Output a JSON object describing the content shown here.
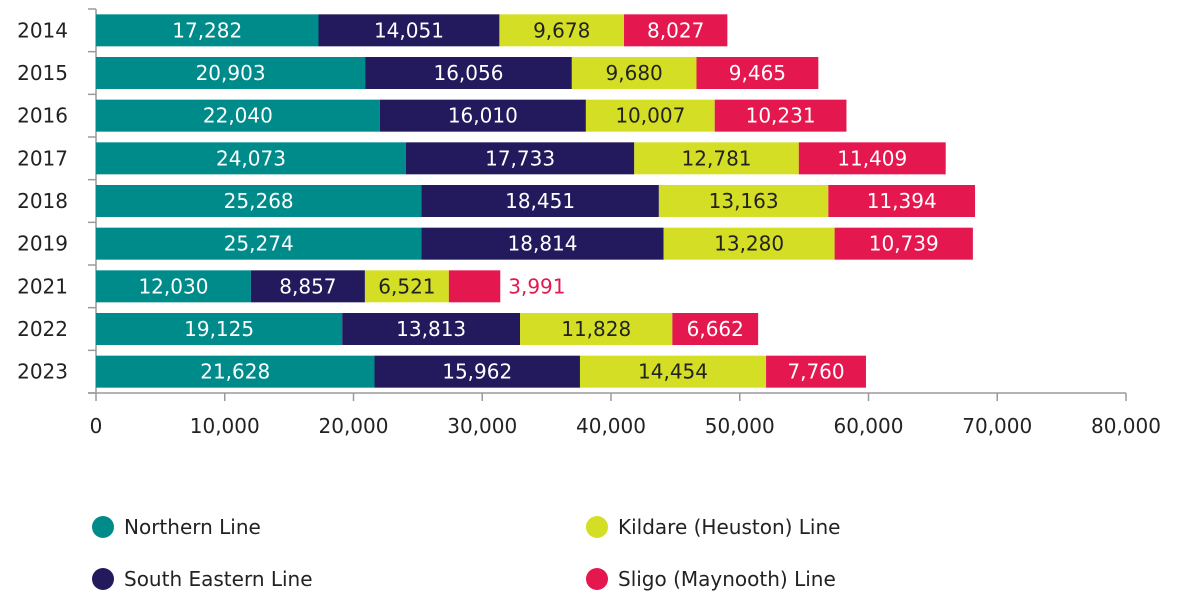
{
  "chart_data": {
    "type": "bar",
    "orientation": "horizontal",
    "stacked": true,
    "categories": [
      "2014",
      "2015",
      "2016",
      "2017",
      "2018",
      "2019",
      "2021",
      "2022",
      "2023"
    ],
    "series": [
      {
        "name": "Northern Line",
        "color": "#008b8b",
        "values": [
          17282,
          20903,
          22040,
          24073,
          25268,
          25274,
          12030,
          19125,
          21628
        ],
        "labels": [
          "17,282",
          "20,903",
          "22,040",
          "24,073",
          "25,268",
          "25,274",
          "12,030",
          "19,125",
          "21,628"
        ]
      },
      {
        "name": "South Eastern Line",
        "color": "#221a5c",
        "values": [
          14051,
          16056,
          16010,
          17733,
          18451,
          18814,
          8857,
          13813,
          15962
        ],
        "labels": [
          "14,051",
          "16,056",
          "16,010",
          "17,733",
          "18,451",
          "18,814",
          "8,857",
          "13,813",
          "15,962"
        ]
      },
      {
        "name": "Kildare (Heuston) Line",
        "color": "#d4de24",
        "values": [
          9678,
          9680,
          10007,
          12781,
          13163,
          13280,
          6521,
          11828,
          14454
        ],
        "labels": [
          "9,678",
          "9,680",
          "10,007",
          "12,781",
          "13,163",
          "13,280",
          "6,521",
          "11,828",
          "14,454"
        ]
      },
      {
        "name": "Sligo (Maynooth) Line",
        "color": "#e5174f",
        "values": [
          8027,
          9465,
          10231,
          11409,
          11394,
          10739,
          3991,
          6662,
          7760
        ],
        "labels": [
          "8,027",
          "9,465",
          "10,231",
          "11,409",
          "11,394",
          "10,739",
          "3,991",
          "6,662",
          "7,760"
        ]
      }
    ],
    "xlim": [
      0,
      80000
    ],
    "x_ticks": [
      0,
      10000,
      20000,
      30000,
      40000,
      50000,
      60000,
      70000,
      80000
    ],
    "x_tick_labels": [
      "0",
      "10,000",
      "20,000",
      "30,000",
      "40,000",
      "50,000",
      "60,000",
      "70,000",
      "80,000"
    ],
    "grid": false,
    "legend_position": "bottom",
    "title": "",
    "xlabel": "",
    "ylabel": ""
  }
}
